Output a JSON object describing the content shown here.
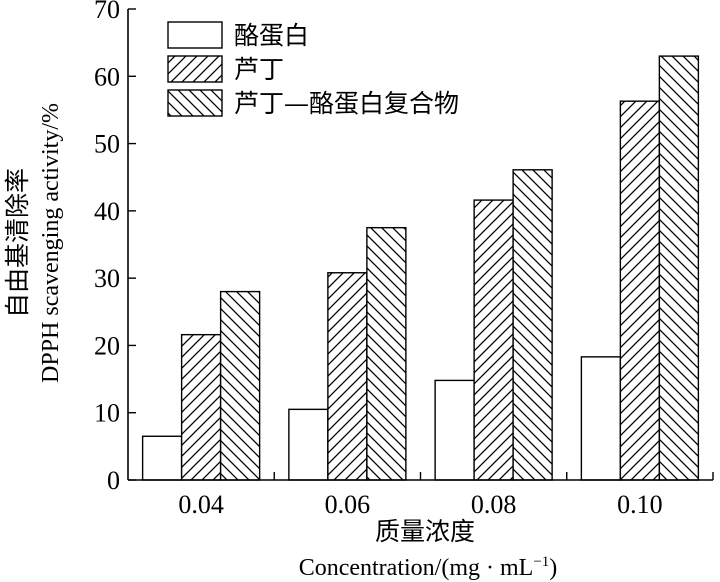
{
  "chart_data": {
    "type": "bar",
    "categories": [
      "0.04",
      "0.06",
      "0.08",
      "0.10"
    ],
    "series": [
      {
        "name": "酪蛋白",
        "values": [
          6.5,
          10.5,
          14.8,
          18.3
        ],
        "pattern": "none"
      },
      {
        "name": "芦丁",
        "values": [
          21.6,
          30.8,
          41.6,
          56.3
        ],
        "pattern": "forward-diagonal"
      },
      {
        "name": "芦丁—酪蛋白复合物",
        "values": [
          28.0,
          37.5,
          46.1,
          63.0
        ],
        "pattern": "back-diagonal"
      }
    ],
    "xlabel_cn": "质量浓度",
    "xlabel_en": "Concentration/(mg · mL",
    "xlabel_en_sup": "−1",
    "xlabel_en_end": ")",
    "ylabel_cn": "自由基清除率",
    "ylabel_en": "DPPH scavenging activity/%",
    "ylim": [
      0,
      70
    ],
    "yticks": [
      0,
      10,
      20,
      30,
      40,
      50,
      60,
      70
    ],
    "legend_position": "top-left",
    "grid": false,
    "colors": {
      "stroke": "#000000",
      "fill": "#ffffff"
    }
  }
}
